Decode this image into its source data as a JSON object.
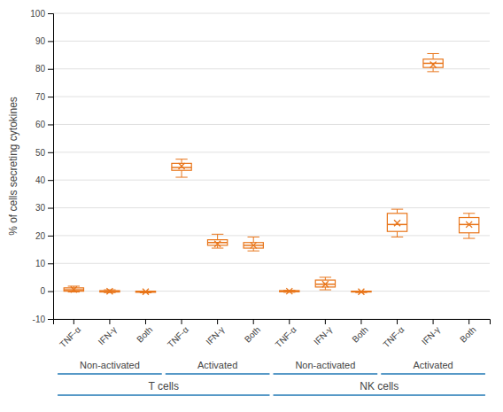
{
  "chart_data": {
    "type": "box",
    "ylabel": "% of cells secreting cytokines",
    "categories": [
      "TNF-α",
      "IFN-γ",
      "Both",
      "TNF-α",
      "IFN-γ",
      "Both",
      "TNF-α",
      "IFN-γ",
      "Both",
      "TNF-α",
      "IFN-γ",
      "Both"
    ],
    "activation": [
      "Non-activated",
      "Non-activated",
      "Non-activated",
      "Activated",
      "Activated",
      "Activated",
      "Non-activated",
      "Non-activated",
      "Non-activated",
      "Activated",
      "Activated",
      "Activated"
    ],
    "cell_type": [
      "T cells",
      "T cells",
      "T cells",
      "T cells",
      "T cells",
      "T cells",
      "NK cells",
      "NK cells",
      "NK cells",
      "NK cells",
      "NK cells",
      "NK cells"
    ],
    "whislo": [
      -0.3,
      -0.5,
      -0.6,
      41.0,
      15.5,
      14.5,
      -0.4,
      0.5,
      -0.5,
      19.5,
      79.0,
      19.0
    ],
    "q1": [
      0.0,
      -0.3,
      -0.4,
      43.5,
      16.5,
      15.5,
      -0.2,
      1.5,
      -0.3,
      21.5,
      80.5,
      21.0
    ],
    "median": [
      0.5,
      -0.1,
      -0.2,
      44.5,
      17.5,
      16.5,
      0.0,
      2.5,
      -0.15,
      24.0,
      82.0,
      24.0
    ],
    "q3": [
      1.2,
      0.2,
      0.0,
      46.0,
      18.5,
      17.5,
      0.2,
      4.0,
      0.0,
      28.0,
      83.5,
      26.5
    ],
    "whishi": [
      1.8,
      0.5,
      0.0,
      47.5,
      20.5,
      19.5,
      0.3,
      5.0,
      0.0,
      29.5,
      85.5,
      28.0
    ],
    "mean": [
      0.6,
      -0.05,
      -0.2,
      45.0,
      17.0,
      16.5,
      0.0,
      2.5,
      -0.2,
      24.5,
      81.5,
      24.0
    ],
    "color": "#E8751A",
    "ylim": [
      -10,
      100
    ],
    "yticks": [
      -10,
      0,
      10,
      20,
      30,
      40,
      50,
      60,
      70,
      80,
      90,
      100
    ],
    "grid": true
  }
}
